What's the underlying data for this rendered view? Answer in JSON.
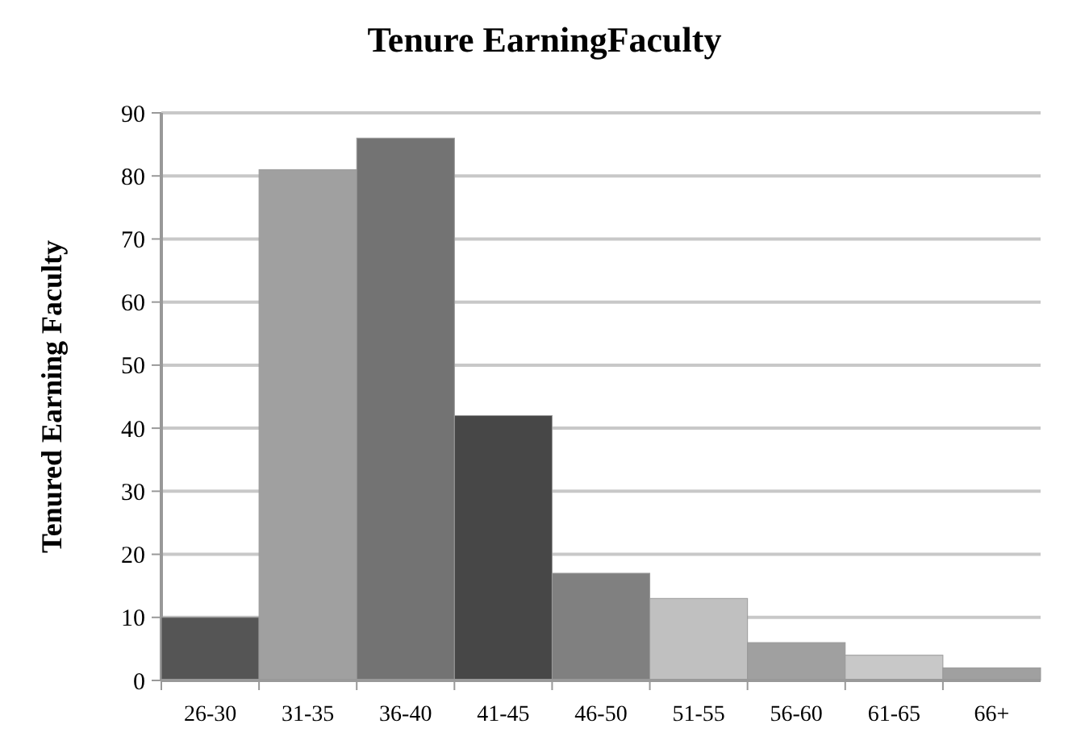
{
  "chart_data": {
    "type": "bar",
    "title": "Tenure EarningFaculty",
    "ylabel": "Tenured Earning Faculty",
    "categories": [
      "26-30",
      "31-35",
      "36-40",
      "41-45",
      "46-50",
      "51-55",
      "56-60",
      "61-65",
      "66+"
    ],
    "values": [
      10,
      81,
      86,
      42,
      17,
      13,
      6,
      4,
      2
    ],
    "colors": [
      "#555555",
      "#a0a0a0",
      "#737373",
      "#474747",
      "#808080",
      "#c0c0c0",
      "#a0a0a0",
      "#c8c8c8",
      "#a0a0a0"
    ],
    "ylim": [
      0,
      90
    ],
    "yticks": [
      0,
      10,
      20,
      30,
      40,
      50,
      60,
      70,
      80,
      90
    ],
    "grid": "y"
  }
}
